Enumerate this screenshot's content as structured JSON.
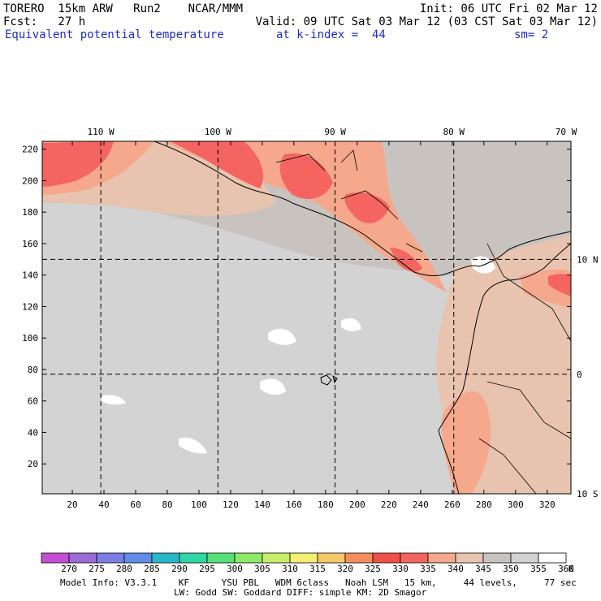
{
  "header": {
    "model": "TORERO  15km ARW   Run2    NCAR/MMM",
    "init": "Init: 06 UTC Fri 02 Mar 12",
    "fcst": "Fcst:   27 h",
    "valid": "Valid: 09 UTC Sat 03 Mar 12 (03 CST Sat 03 Mar 12)",
    "field": "Equivalent potential temperature",
    "level": "at k-index =  44",
    "smooth": "sm= 2"
  },
  "map": {
    "top_lon_labels": [
      "110 W",
      "100 W",
      "90 W",
      "80 W",
      "70 W"
    ],
    "right_lat_labels": [
      "10 N",
      "0",
      "10 S"
    ],
    "y_ticks": [
      20,
      40,
      60,
      80,
      100,
      120,
      140,
      160,
      180,
      200,
      220
    ],
    "x_ticks": [
      20,
      40,
      60,
      80,
      100,
      120,
      140,
      160,
      180,
      200,
      220,
      240,
      260,
      280,
      300,
      320
    ],
    "x_range": [
      1,
      335
    ],
    "y_range": [
      1,
      225
    ],
    "grid_lon_x": [
      38,
      112,
      186,
      261
    ],
    "grid_lat_y": [
      150,
      77
    ]
  },
  "legend": {
    "labels": [
      "270",
      "275",
      "280",
      "285",
      "290",
      "295",
      "300",
      "305",
      "310",
      "315",
      "320",
      "325",
      "330",
      "335",
      "340",
      "345",
      "350",
      "355",
      "360",
      "K"
    ],
    "colors": [
      "#c44fd3",
      "#9b6bd6",
      "#7b7ee4",
      "#5f8de8",
      "#2ab8c8",
      "#2fd6a6",
      "#55e07a",
      "#8ee86a",
      "#c8ef6a",
      "#f2ef72",
      "#f5c96a",
      "#f58e5e",
      "#ef4f48",
      "#f46460",
      "#f5a88c",
      "#e8c4b0",
      "#c9c3bf",
      "#d3d3d3",
      "#ffffff"
    ]
  },
  "footer": {
    "line1": "Model Info: V3.3.1    KF      YSU PBL   WDM 6class   Noah LSM   15 km,     44 levels,     77 sec",
    "line2": "LW: Godd SW: Goddard DIFF: simple KM: 2D Smagor"
  }
}
